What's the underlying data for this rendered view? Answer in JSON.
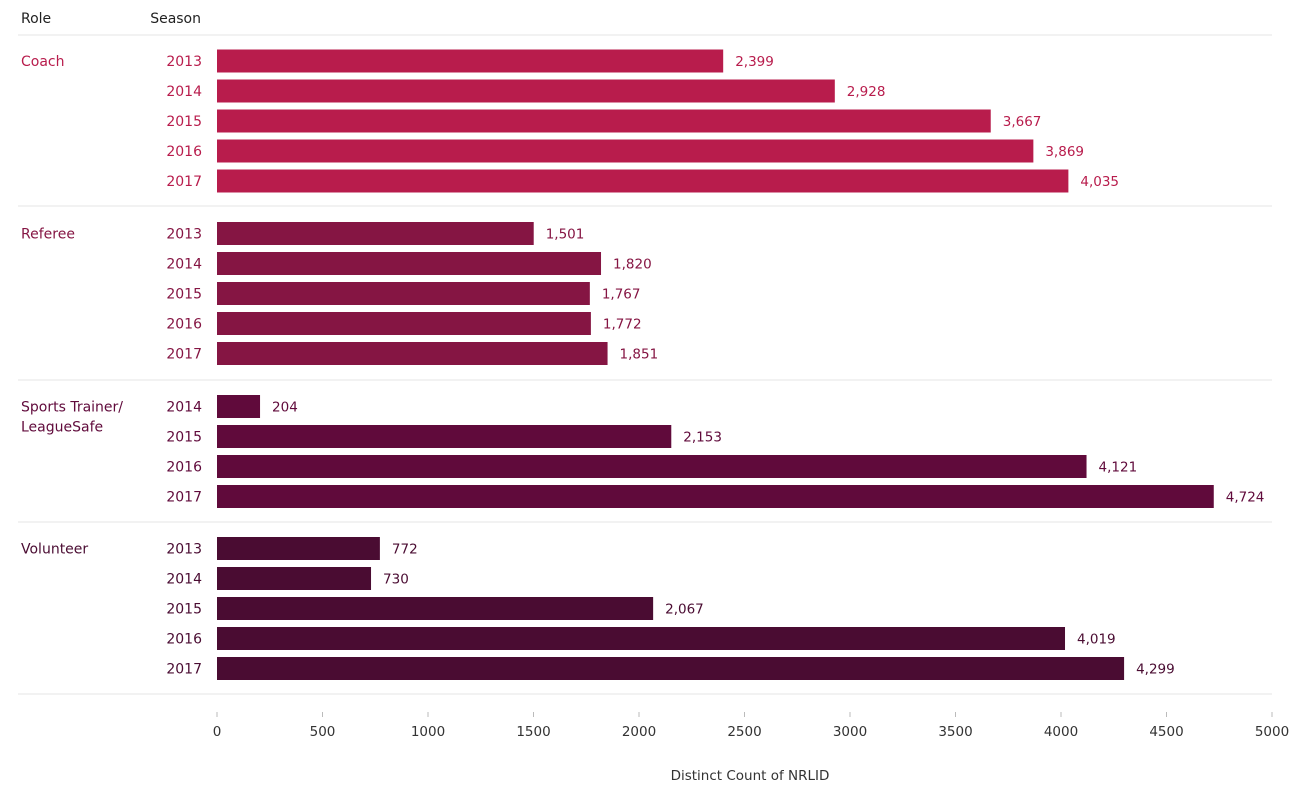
{
  "header": {
    "role": "Role",
    "season": "Season"
  },
  "chart_data": {
    "type": "bar",
    "orientation": "horizontal",
    "xlabel": "Distinct Count of NRLID",
    "xlim": [
      0,
      5000
    ],
    "xticks": [
      0,
      500,
      1000,
      1500,
      2000,
      2500,
      3000,
      3500,
      4000,
      4500,
      5000
    ],
    "grid": false,
    "groups": [
      {
        "role_lines": [
          "Coach"
        ],
        "color": "#b81c4c",
        "bars": [
          {
            "season": "2013",
            "value": 2399,
            "label": "2,399"
          },
          {
            "season": "2014",
            "value": 2928,
            "label": "2,928"
          },
          {
            "season": "2015",
            "value": 3667,
            "label": "3,667"
          },
          {
            "season": "2016",
            "value": 3869,
            "label": "3,869"
          },
          {
            "season": "2017",
            "value": 4035,
            "label": "4,035"
          }
        ]
      },
      {
        "role_lines": [
          "Referee"
        ],
        "color": "#851543",
        "bars": [
          {
            "season": "2013",
            "value": 1501,
            "label": "1,501"
          },
          {
            "season": "2014",
            "value": 1820,
            "label": "1,820"
          },
          {
            "season": "2015",
            "value": 1767,
            "label": "1,767"
          },
          {
            "season": "2016",
            "value": 1772,
            "label": "1,772"
          },
          {
            "season": "2017",
            "value": 1851,
            "label": "1,851"
          }
        ]
      },
      {
        "role_lines": [
          "Sports Trainer/",
          "LeagueSafe"
        ],
        "color": "#600a3b",
        "bars": [
          {
            "season": "2014",
            "value": 204,
            "label": "204"
          },
          {
            "season": "2015",
            "value": 2153,
            "label": "2,153"
          },
          {
            "season": "2016",
            "value": 4121,
            "label": "4,121"
          },
          {
            "season": "2017",
            "value": 4724,
            "label": "4,724"
          }
        ]
      },
      {
        "role_lines": [
          "Volunteer"
        ],
        "color": "#4a0c32",
        "bars": [
          {
            "season": "2013",
            "value": 772,
            "label": "772"
          },
          {
            "season": "2014",
            "value": 730,
            "label": "730"
          },
          {
            "season": "2015",
            "value": 2067,
            "label": "2,067"
          },
          {
            "season": "2016",
            "value": 4019,
            "label": "4,019"
          },
          {
            "season": "2017",
            "value": 4299,
            "label": "4,299"
          }
        ]
      }
    ]
  }
}
